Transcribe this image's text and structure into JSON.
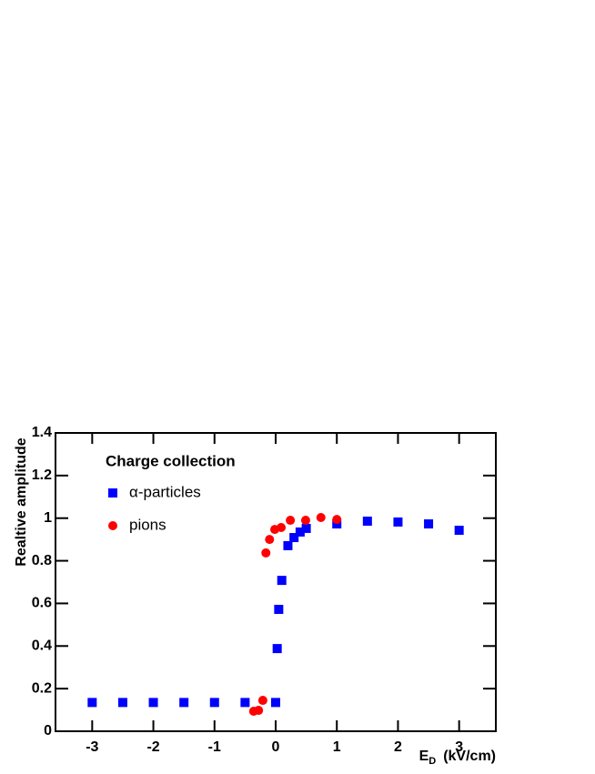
{
  "chart_data": {
    "type": "scatter",
    "legend_title": "Charge collection",
    "x_label": [
      "E",
      "D",
      "(kV/cm)"
    ],
    "y_label": "Realtive amplitude",
    "xlim": [
      -3.6,
      3.6
    ],
    "xticks": [
      -3,
      -2,
      -1,
      0,
      1,
      2,
      3
    ],
    "ylim": [
      0,
      1.4
    ],
    "yticks": [
      0,
      0.2,
      0.4,
      0.6,
      0.8,
      1,
      1.2,
      1.4
    ],
    "grid": false,
    "legend": "upper left",
    "series": [
      {
        "name": "α-particles",
        "color": "#0000ff",
        "marker": "square",
        "x": [
          -3,
          -2.5,
          -2,
          -1.5,
          -1,
          -0.5,
          0,
          0.025,
          0.05,
          0.1,
          0.2,
          0.3,
          0.4,
          0.5,
          1,
          1.5,
          2,
          2.5,
          3
        ],
        "values": [
          0.135,
          0.135,
          0.135,
          0.135,
          0.135,
          0.135,
          0.135,
          0.388,
          0.572,
          0.708,
          0.871,
          0.909,
          0.935,
          0.952,
          0.973,
          0.986,
          0.982,
          0.973,
          0.943
        ]
      },
      {
        "name": "pions",
        "color": "#ff0000",
        "marker": "circle",
        "x": [
          -0.36,
          -0.28,
          -0.21,
          -0.16,
          -0.1,
          -0.015,
          0.09,
          0.24,
          0.49,
          0.74,
          1.0
        ],
        "values": [
          0.094,
          0.098,
          0.145,
          0.837,
          0.9,
          0.947,
          0.956,
          0.99,
          0.99,
          1.003,
          0.994
        ]
      }
    ]
  }
}
